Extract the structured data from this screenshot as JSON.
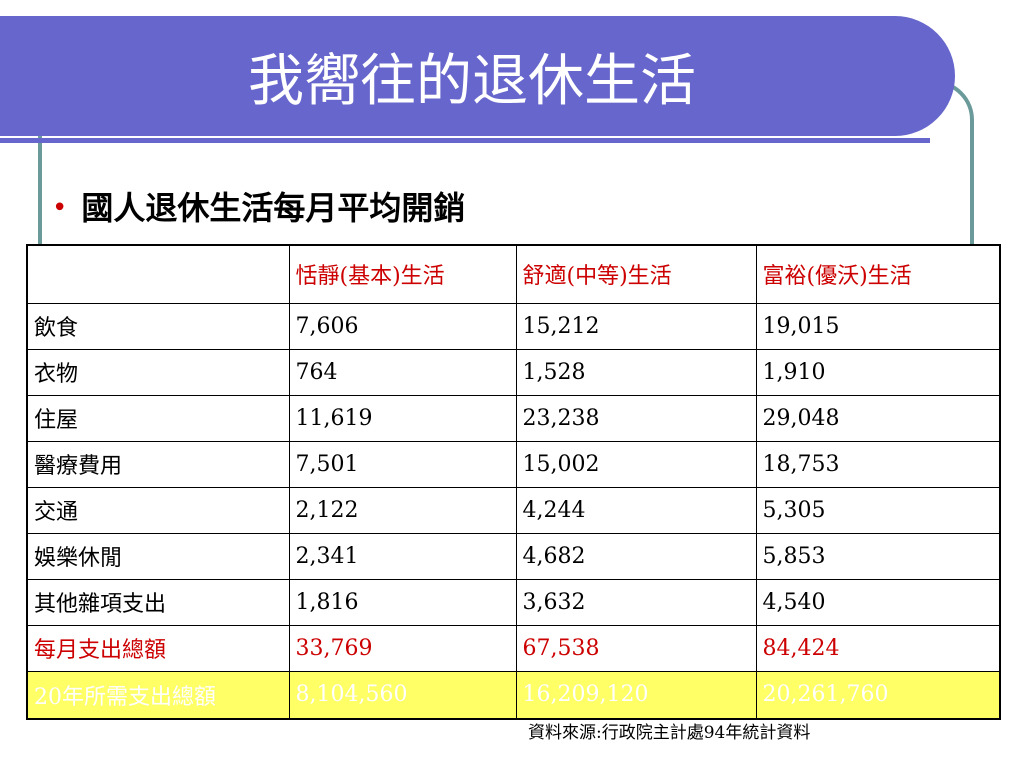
{
  "slide": {
    "title": "我嚮往的退休生活",
    "bullet": "國人退休生活每月平均開銷",
    "source_note": "資料來源:行政院主計處94年統計資料"
  },
  "table": {
    "headers": [
      "",
      "恬靜(基本)生活",
      "舒適(中等)生活",
      "富裕(優沃)生活"
    ],
    "rows": [
      [
        "飲食",
        "7,606",
        "15,212",
        "19,015"
      ],
      [
        "衣物",
        "764",
        "1,528",
        "1,910"
      ],
      [
        "住屋",
        "11,619",
        "23,238",
        "29,048"
      ],
      [
        "醫療費用",
        "7,501",
        "15,002",
        "18,753"
      ],
      [
        "交通",
        "2,122",
        "4,244",
        "5,305"
      ],
      [
        "娛樂休閒",
        "2,341",
        "4,682",
        "5,853"
      ],
      [
        "其他雜項支出",
        "1,816",
        "3,632",
        "4,540"
      ],
      [
        "每月支出總額",
        "33,769",
        "67,538",
        "84,424"
      ],
      [
        "20年所需支出總額",
        "8,104,560",
        "16,209,120",
        "20,261,760"
      ]
    ]
  },
  "colors": {
    "banner": "#6666cc",
    "frame": "#6b9a9a",
    "accent_red": "#cc0000",
    "highlight_yellow": "#ffff66"
  }
}
